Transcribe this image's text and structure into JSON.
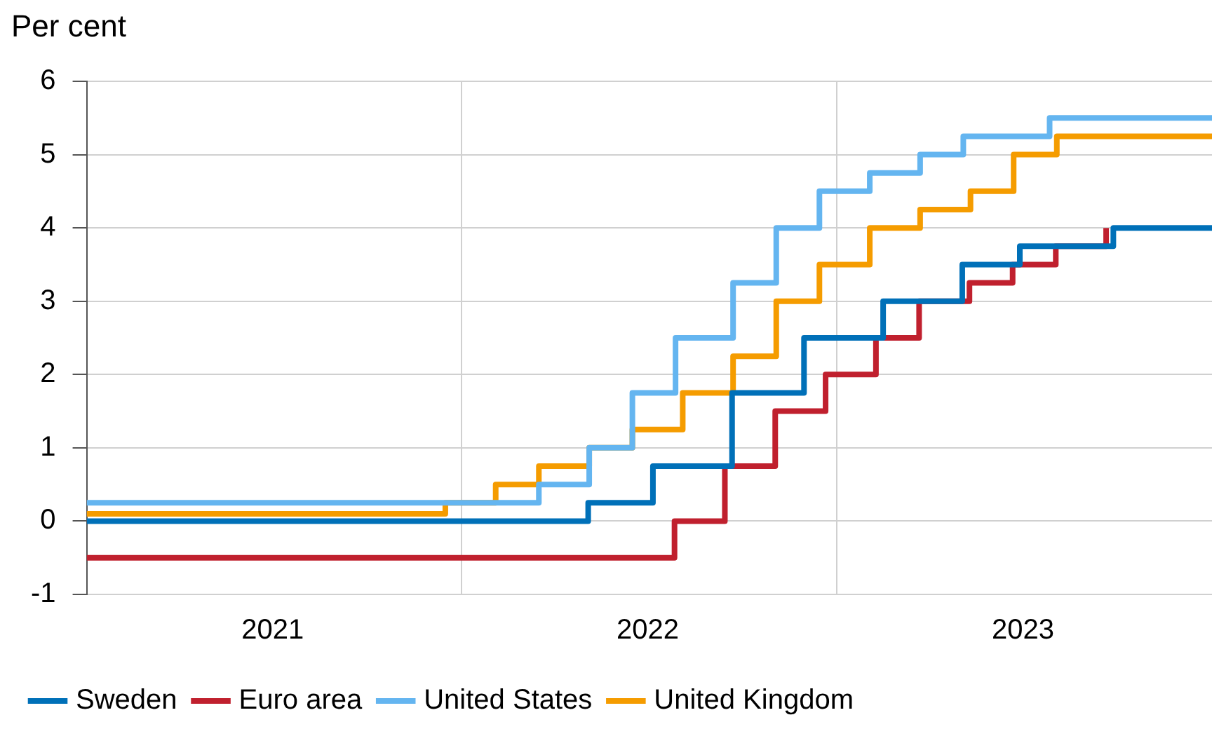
{
  "chart_data": {
    "type": "step",
    "ylabel": "Per cent",
    "xlim": [
      "2021-01-01",
      "2024-01-01"
    ],
    "xticks": [
      {
        "value": "2021-07-01",
        "label": "2021"
      },
      {
        "value": "2022-01-01",
        "label": null
      },
      {
        "value": "2022-07-01",
        "label": "2022"
      },
      {
        "value": "2023-01-01",
        "label": null
      },
      {
        "value": "2023-07-01",
        "label": "2023"
      }
    ],
    "ylim": [
      -1,
      6
    ],
    "yticks": [
      -1,
      0,
      1,
      2,
      3,
      4,
      5,
      6
    ],
    "grid": true,
    "legend": "bottom",
    "line_style": "solid",
    "marker": "none",
    "series": [
      {
        "name": "Sweden",
        "color": "#0070b8",
        "x": [
          "2021-01-01",
          "2022-05-04",
          "2022-07-06",
          "2022-09-21",
          "2022-11-30",
          "2023-02-15",
          "2023-05-03",
          "2023-06-28",
          "2023-09-27",
          "2024-01-01"
        ],
        "values": [
          0,
          0.25,
          0.75,
          1.75,
          2.5,
          3,
          3.5,
          3.75,
          4,
          4
        ]
      },
      {
        "name": "Euro area",
        "color": "#c0202e",
        "x": [
          "2021-01-01",
          "2022-07-27",
          "2022-09-14",
          "2022-11-02",
          "2022-12-21",
          "2023-02-08",
          "2023-03-22",
          "2023-05-10",
          "2023-06-21",
          "2023-08-02",
          "2023-09-20"
        ],
        "values": [
          -0.5,
          0,
          0.75,
          1.5,
          2,
          2.5,
          3,
          3.25,
          3.5,
          3.75,
          4
        ]
      },
      {
        "name": "United States",
        "color": "#64b5f0",
        "x": [
          "2021-01-01",
          "2022-03-17",
          "2022-05-05",
          "2022-06-16",
          "2022-07-28",
          "2022-09-22",
          "2022-11-03",
          "2022-12-15",
          "2023-02-02",
          "2023-03-23",
          "2023-05-04",
          "2023-07-27",
          "2024-01-01"
        ],
        "values": [
          0.25,
          0.5,
          1,
          1.75,
          2.5,
          3.25,
          4,
          4.5,
          4.75,
          5,
          5.25,
          5.5,
          5.5
        ]
      },
      {
        "name": "United Kingdom",
        "color": "#f59c00",
        "x": [
          "2021-01-01",
          "2021-12-16",
          "2022-02-03",
          "2022-03-17",
          "2022-05-05",
          "2022-06-16",
          "2022-08-04",
          "2022-09-22",
          "2022-11-03",
          "2022-12-15",
          "2023-02-02",
          "2023-03-23",
          "2023-05-11",
          "2023-06-22",
          "2023-08-03",
          "2024-01-01"
        ],
        "values": [
          0.1,
          0.25,
          0.5,
          0.75,
          1,
          1.25,
          1.75,
          2.25,
          3,
          3.5,
          4,
          4.25,
          4.5,
          5,
          5.25,
          5.25
        ]
      }
    ]
  }
}
